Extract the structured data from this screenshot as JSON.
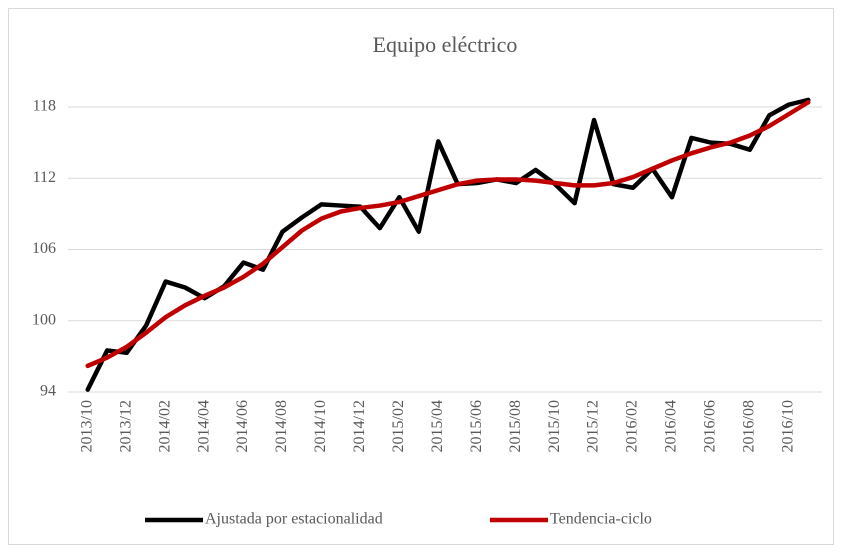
{
  "chart_data": {
    "type": "line",
    "title": "Equipo eléctrico",
    "categories": [
      "2013/10",
      null,
      "2013/12",
      null,
      "2014/02",
      null,
      "2014/04",
      null,
      "2014/06",
      null,
      "2014/08",
      null,
      "2014/10",
      null,
      "2014/12",
      null,
      "2015/02",
      null,
      "2015/04",
      null,
      "2015/06",
      null,
      "2015/08",
      null,
      "2015/10",
      null,
      "2015/12",
      null,
      "2016/02",
      null,
      "2016/04",
      null,
      "2016/06",
      null,
      "2016/08",
      null,
      "2016/10",
      null
    ],
    "series": [
      {
        "name": "Ajustada por estacionalidad",
        "color": "#000000",
        "values": [
          94.2,
          97.5,
          97.3,
          99.6,
          103.3,
          102.8,
          101.9,
          102.9,
          104.9,
          104.3,
          107.5,
          108.7,
          109.8,
          109.7,
          109.6,
          107.8,
          110.4,
          107.5,
          115.1,
          111.5,
          111.6,
          111.9,
          111.6,
          112.7,
          111.5,
          109.9,
          116.9,
          111.5,
          111.2,
          112.8,
          110.4,
          115.4,
          115.0,
          114.9,
          114.4,
          117.3,
          118.2,
          118.6
        ]
      },
      {
        "name": "Tendencia-ciclo",
        "color": "#c00000",
        "values": [
          96.2,
          96.9,
          97.8,
          99.0,
          100.3,
          101.3,
          102.1,
          102.8,
          103.7,
          104.8,
          106.2,
          107.6,
          108.6,
          109.2,
          109.5,
          109.7,
          110.0,
          110.5,
          111.0,
          111.5,
          111.8,
          111.9,
          111.9,
          111.8,
          111.6,
          111.4,
          111.4,
          111.6,
          112.1,
          112.8,
          113.5,
          114.1,
          114.6,
          115.0,
          115.6,
          116.4,
          117.4,
          118.4
        ]
      }
    ],
    "ylim": [
      94,
      118
    ],
    "yticks": [
      94,
      100,
      106,
      112,
      118
    ],
    "grid": true,
    "legend": "bottom"
  }
}
